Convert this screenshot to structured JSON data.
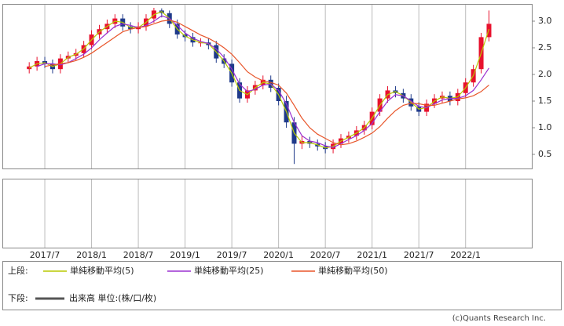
{
  "chart_data": {
    "type": "candlestick",
    "x": [
      "2017/5",
      "2017/6",
      "2017/7",
      "2017/8",
      "2017/9",
      "2017/10",
      "2017/11",
      "2017/12",
      "2018/1",
      "2018/2",
      "2018/3",
      "2018/4",
      "2018/5",
      "2018/6",
      "2018/7",
      "2018/8",
      "2018/9",
      "2018/10",
      "2018/11",
      "2018/12",
      "2019/1",
      "2019/2",
      "2019/3",
      "2019/4",
      "2019/5",
      "2019/6",
      "2019/7",
      "2019/8",
      "2019/9",
      "2019/10",
      "2019/11",
      "2019/12",
      "2020/1",
      "2020/2",
      "2020/3",
      "2020/4",
      "2020/5",
      "2020/6",
      "2020/7",
      "2020/8",
      "2020/9",
      "2020/10",
      "2020/11",
      "2020/12",
      "2021/1",
      "2021/2",
      "2021/3",
      "2021/4",
      "2021/5",
      "2021/6",
      "2021/7",
      "2021/8",
      "2021/9",
      "2021/10",
      "2021/11",
      "2021/12",
      "2022/1",
      "2022/2",
      "2022/3",
      "2022/4"
    ],
    "open": [
      2.1,
      2.15,
      2.25,
      2.2,
      2.1,
      2.3,
      2.35,
      2.4,
      2.55,
      2.75,
      2.85,
      2.95,
      3.05,
      2.9,
      2.85,
      2.9,
      3.05,
      3.2,
      3.15,
      2.95,
      2.75,
      2.7,
      2.6,
      2.6,
      2.55,
      2.3,
      2.2,
      1.85,
      1.55,
      1.7,
      1.8,
      1.9,
      1.75,
      1.5,
      1.1,
      0.7,
      0.75,
      0.7,
      0.65,
      0.6,
      0.7,
      0.8,
      0.85,
      0.95,
      1.05,
      1.3,
      1.55,
      1.7,
      1.65,
      1.55,
      1.4,
      1.3,
      1.45,
      1.55,
      1.6,
      1.5,
      1.65,
      1.85,
      2.1,
      2.7
    ],
    "high": [
      2.23,
      2.33,
      2.33,
      2.28,
      2.38,
      2.43,
      2.48,
      2.63,
      2.83,
      2.93,
      3.03,
      3.13,
      3.13,
      2.98,
      2.98,
      3.13,
      3.25,
      3.24,
      3.2,
      3.03,
      2.83,
      2.78,
      2.68,
      2.68,
      2.63,
      2.38,
      2.28,
      1.93,
      1.78,
      1.88,
      1.98,
      1.98,
      1.83,
      1.6,
      1.2,
      0.85,
      0.83,
      0.78,
      0.73,
      0.78,
      0.88,
      0.93,
      1.03,
      1.13,
      1.38,
      1.63,
      1.78,
      1.78,
      1.73,
      1.63,
      1.48,
      1.53,
      1.63,
      1.68,
      1.68,
      1.73,
      1.93,
      2.18,
      2.78,
      3.2
    ],
    "low": [
      2.02,
      2.07,
      2.12,
      2.02,
      2.02,
      2.22,
      2.27,
      2.32,
      2.47,
      2.67,
      2.77,
      2.87,
      2.82,
      2.77,
      2.77,
      2.82,
      2.97,
      3.07,
      2.87,
      2.67,
      2.62,
      2.52,
      2.52,
      2.47,
      2.22,
      2.12,
      1.77,
      1.47,
      1.47,
      1.62,
      1.72,
      1.67,
      1.42,
      1.0,
      0.32,
      0.6,
      0.62,
      0.57,
      0.52,
      0.52,
      0.62,
      0.72,
      0.77,
      0.87,
      0.97,
      1.22,
      1.47,
      1.57,
      1.47,
      1.32,
      1.22,
      1.22,
      1.37,
      1.47,
      1.42,
      1.42,
      1.57,
      1.77,
      2.02,
      2.62
    ],
    "close": [
      2.15,
      2.25,
      2.2,
      2.1,
      2.3,
      2.35,
      2.4,
      2.55,
      2.75,
      2.85,
      2.95,
      3.05,
      2.9,
      2.85,
      2.9,
      3.05,
      3.2,
      3.15,
      2.95,
      2.75,
      2.7,
      2.6,
      2.6,
      2.55,
      2.3,
      2.2,
      1.85,
      1.55,
      1.7,
      1.8,
      1.9,
      1.75,
      1.5,
      1.1,
      0.7,
      0.75,
      0.7,
      0.65,
      0.6,
      0.7,
      0.8,
      0.85,
      0.95,
      1.05,
      1.3,
      1.55,
      1.7,
      1.65,
      1.55,
      1.4,
      1.3,
      1.45,
      1.55,
      1.6,
      1.5,
      1.65,
      1.85,
      2.1,
      2.7,
      2.95
    ],
    "up_color": "#e8112d",
    "down_color": "#1f3a8a",
    "series": [
      {
        "name": "単純移動平均(5)",
        "color": "#b8c800",
        "values": [
          2.12,
          2.2,
          2.22,
          2.15,
          2.2,
          2.32,
          2.38,
          2.48,
          2.65,
          2.8,
          2.9,
          3.0,
          2.98,
          2.88,
          2.88,
          2.98,
          3.12,
          3.18,
          3.05,
          2.85,
          2.72,
          2.65,
          2.6,
          2.58,
          2.42,
          2.25,
          2.02,
          1.7,
          1.62,
          1.75,
          1.85,
          1.82,
          1.62,
          1.3,
          0.9,
          0.72,
          0.72,
          0.68,
          0.62,
          0.65,
          0.75,
          0.82,
          0.9,
          1.0,
          1.18,
          1.42,
          1.62,
          1.68,
          1.6,
          1.48,
          1.35,
          1.38,
          1.5,
          1.58,
          1.55,
          1.58,
          1.75,
          1.98,
          2.4,
          2.85
        ]
      },
      {
        "name": "単純移動平均(25)",
        "color": "#9b30d0",
        "values": [
          null,
          2.15,
          2.2,
          2.2,
          2.18,
          2.22,
          2.3,
          2.38,
          2.5,
          2.65,
          2.78,
          2.9,
          2.95,
          2.92,
          2.88,
          2.92,
          3.0,
          3.1,
          3.05,
          2.92,
          2.78,
          2.68,
          2.62,
          2.58,
          2.48,
          2.32,
          2.1,
          1.82,
          1.68,
          1.72,
          1.8,
          1.82,
          1.7,
          1.45,
          1.1,
          0.85,
          0.75,
          0.72,
          0.66,
          0.63,
          0.7,
          0.78,
          0.85,
          0.95,
          1.08,
          1.3,
          1.5,
          1.62,
          1.6,
          1.5,
          1.4,
          1.38,
          1.45,
          1.52,
          1.55,
          1.55,
          1.6,
          1.7,
          1.9,
          2.12
        ]
      },
      {
        "name": "単純移動平均(50)",
        "color": "#e8552a",
        "values": [
          null,
          null,
          2.15,
          2.18,
          2.2,
          2.22,
          2.26,
          2.32,
          2.4,
          2.5,
          2.6,
          2.7,
          2.8,
          2.85,
          2.88,
          2.9,
          2.95,
          3.0,
          3.02,
          2.98,
          2.9,
          2.82,
          2.74,
          2.68,
          2.6,
          2.5,
          2.38,
          2.22,
          2.05,
          1.95,
          1.88,
          1.85,
          1.8,
          1.65,
          1.42,
          1.18,
          1.0,
          0.88,
          0.8,
          0.72,
          0.68,
          0.7,
          0.75,
          0.82,
          0.9,
          1.02,
          1.18,
          1.32,
          1.42,
          1.46,
          1.45,
          1.42,
          1.42,
          1.46,
          1.5,
          1.54,
          1.56,
          1.6,
          1.68,
          1.8
        ]
      }
    ],
    "ylim": [
      0.25,
      3.3
    ],
    "yticks": [
      0.5,
      {
        "value": 1,
        "label": "1.0"
      },
      1.5,
      {
        "value": 2,
        "label": "2.0"
      },
      2.5,
      {
        "value": 3,
        "label": "3.0"
      }
    ],
    "xticks": [
      "2017/7",
      "2018/1",
      "2018/7",
      "2019/1",
      "2019/7",
      "2020/1",
      "2020/7",
      "2021/1",
      "2021/7",
      "2022/1"
    ],
    "grid": true
  },
  "legend": {
    "upper_label": "上段:",
    "lower_label": "下段:",
    "volume_label": "出来高 単位:(株/口/枚)"
  },
  "copyright": "(c)Quants Research Inc."
}
